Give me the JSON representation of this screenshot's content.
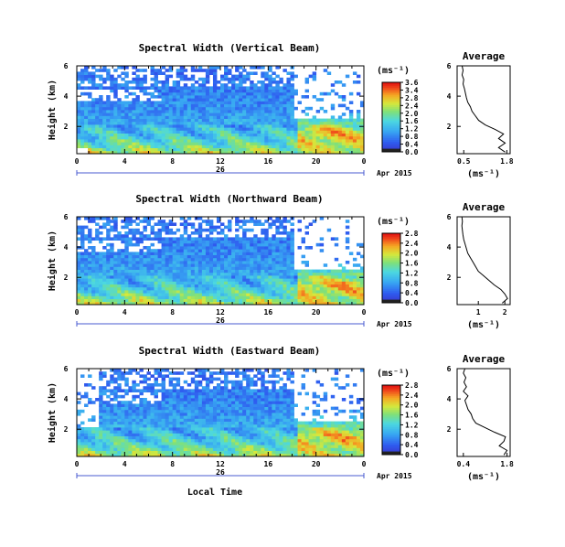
{
  "figure": {
    "time_axis_label": "Local Time",
    "date_day": "26",
    "date_label": "Apr 2015",
    "colorbar_unit": "(ms⁻¹)",
    "average_title": "Average",
    "average_unit": "(ms⁻¹)",
    "height_label": "Height (km)"
  },
  "chart_data": [
    {
      "type": "heatmap",
      "title": "Spectral Width (Vertical Beam)",
      "ylabel": "Height (km)",
      "xlabel": "",
      "x_ticks": [
        "0",
        "4",
        "8",
        "12",
        "16",
        "20",
        "0"
      ],
      "xlim": [
        0,
        24
      ],
      "y_ticks": [
        "6",
        "4",
        "2"
      ],
      "ylim": [
        0.2,
        6
      ],
      "colorbar": {
        "unit": "(ms⁻¹)",
        "ticks": [
          "3.6",
          "3.4",
          "2.8",
          "2.4",
          "2.0",
          "1.6",
          "1.2",
          "0.8",
          "0.4",
          "0.0"
        ],
        "range": [
          0,
          3.6
        ]
      },
      "average_profile": {
        "title": "Average",
        "xlabel": "(ms⁻¹)",
        "x_ticks": [
          "0.5",
          "1.8"
        ],
        "xlim": [
          0.3,
          1.9
        ],
        "y_ticks": [
          "6",
          "4",
          "2"
        ],
        "ylim": [
          0.2,
          6
        ],
        "height": [
          0.3,
          0.6,
          0.9,
          1.2,
          1.5,
          1.8,
          2.1,
          2.4,
          2.7,
          3.0,
          3.3,
          3.6,
          3.9,
          4.2,
          4.5,
          4.8,
          5.1,
          5.4,
          5.7,
          6.0
        ],
        "width": [
          1.75,
          1.55,
          1.75,
          1.55,
          1.7,
          1.45,
          1.15,
          0.95,
          0.85,
          0.75,
          0.7,
          0.62,
          0.58,
          0.55,
          0.52,
          0.48,
          0.5,
          0.45,
          0.48,
          0.45
        ]
      }
    },
    {
      "type": "heatmap",
      "title": "Spectral Width (Northward Beam)",
      "ylabel": "Height (km)",
      "xlabel": "",
      "x_ticks": [
        "0",
        "4",
        "8",
        "12",
        "16",
        "20",
        "0"
      ],
      "xlim": [
        0,
        24
      ],
      "y_ticks": [
        "6",
        "4",
        "2"
      ],
      "ylim": [
        0.2,
        6
      ],
      "colorbar": {
        "unit": "(ms⁻¹)",
        "ticks": [
          "2.8",
          "2.4",
          "2.0",
          "1.6",
          "1.2",
          "0.8",
          "0.4",
          "0.0"
        ],
        "range": [
          0,
          2.8
        ]
      },
      "average_profile": {
        "title": "Average",
        "xlabel": "(ms⁻¹)",
        "x_ticks": [
          "1",
          "2"
        ],
        "xlim": [
          0.2,
          2.2
        ],
        "y_ticks": [
          "6",
          "4",
          "2"
        ],
        "ylim": [
          0.2,
          6
        ],
        "height": [
          0.3,
          0.6,
          0.9,
          1.2,
          1.5,
          1.8,
          2.1,
          2.4,
          2.7,
          3.0,
          3.3,
          3.6,
          3.9,
          4.2,
          4.5,
          4.8,
          5.1,
          5.4,
          5.7,
          6.0
        ],
        "width": [
          1.9,
          2.1,
          2.0,
          1.85,
          1.6,
          1.4,
          1.2,
          1.0,
          0.9,
          0.8,
          0.7,
          0.6,
          0.55,
          0.5,
          0.45,
          0.42,
          0.4,
          0.38,
          0.4,
          0.38
        ]
      }
    },
    {
      "type": "heatmap",
      "title": "Spectral Width (Eastward Beam)",
      "ylabel": "Height (km)",
      "xlabel": "Local Time",
      "x_ticks": [
        "0",
        "4",
        "8",
        "12",
        "16",
        "20",
        "0"
      ],
      "xlim": [
        0,
        24
      ],
      "y_ticks": [
        "6",
        "4",
        "2"
      ],
      "ylim": [
        0.2,
        6
      ],
      "colorbar": {
        "unit": "(ms⁻¹)",
        "ticks": [
          "2.8",
          "2.4",
          "2.0",
          "1.6",
          "1.2",
          "0.8",
          "0.4",
          "0.0"
        ],
        "range": [
          0,
          2.8
        ]
      },
      "average_profile": {
        "title": "Average",
        "xlabel": "(ms⁻¹)",
        "x_ticks": [
          "0.4",
          "1.8"
        ],
        "xlim": [
          0.2,
          1.9
        ],
        "y_ticks": [
          "6",
          "4",
          "2"
        ],
        "ylim": [
          0.2,
          6
        ],
        "height": [
          0.3,
          0.6,
          0.9,
          1.2,
          1.5,
          1.8,
          2.1,
          2.4,
          2.7,
          3.0,
          3.3,
          3.6,
          3.9,
          4.2,
          4.5,
          4.8,
          5.1,
          5.4,
          5.7,
          6.0
        ],
        "width": [
          1.7,
          1.8,
          1.55,
          1.7,
          1.75,
          1.4,
          1.1,
          0.8,
          0.7,
          0.65,
          0.55,
          0.5,
          0.45,
          0.55,
          0.4,
          0.5,
          0.42,
          0.48,
          0.4,
          0.45
        ]
      }
    }
  ]
}
